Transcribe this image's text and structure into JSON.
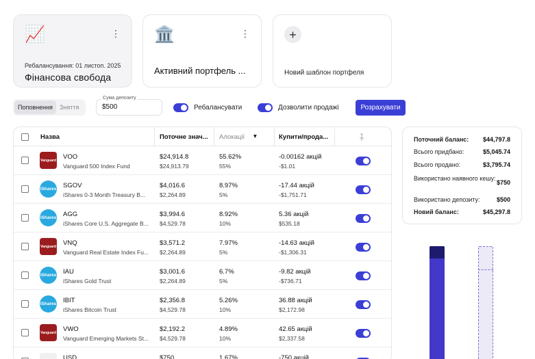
{
  "portfolios": {
    "active_card": {
      "emoji": "📈",
      "menu": "⋮",
      "subtitle": "Ребалансування: 01 листоп. 2025",
      "title": "Фінансова свобода"
    },
    "second_card": {
      "emoji": "🏛️",
      "menu": "⋮",
      "title": "Активний портфель ..."
    },
    "new_card": {
      "plus": "+",
      "label": "Новий шаблон портфеля"
    }
  },
  "controls": {
    "mode_options": [
      "Поповнення",
      "Зняття"
    ],
    "deposit_label": "Сума депозиту",
    "deposit_value": "$500",
    "rebalance_label": "Ребалансувати",
    "allow_sales_label": "Дозволити продажі",
    "calculate_button": "Розрахувати"
  },
  "table": {
    "headers": {
      "name": "Назва",
      "current": "Поточне знач...",
      "allocation": "Алокації",
      "buy_sell": "Купити/прода...",
      "sort_glyph": "▾"
    },
    "rows": [
      {
        "ticker": "VOO",
        "name": "Vanguard 500 Index Fund",
        "logo": "Vanguard",
        "logo_type": "van",
        "current": "$24,914.8",
        "target": "$24,913.79",
        "alloc": "55.62%",
        "alloc_target": "55%",
        "trade": "-0.00162 акцій",
        "trade_value": "-$1.01"
      },
      {
        "ticker": "SGOV",
        "name": "iShares 0-3 Month Treasury B...",
        "logo": "iShares",
        "logo_type": "ish",
        "current": "$4,016.6",
        "target": "$2,264.89",
        "alloc": "8.97%",
        "alloc_target": "5%",
        "trade": "-17.44 акцій",
        "trade_value": "-$1,751.71"
      },
      {
        "ticker": "AGG",
        "name": "iShares Core U.S. Aggregate B...",
        "logo": "iShares",
        "logo_type": "ish",
        "current": "$3,994.6",
        "target": "$4,529.78",
        "alloc": "8.92%",
        "alloc_target": "10%",
        "trade": "5.36 акцій",
        "trade_value": "$535.18"
      },
      {
        "ticker": "VNQ",
        "name": "Vanguard Real Estate Index Fu...",
        "logo": "Vanguard",
        "logo_type": "van",
        "current": "$3,571.2",
        "target": "$2,264.89",
        "alloc": "7.97%",
        "alloc_target": "5%",
        "trade": "-14.63 акцій",
        "trade_value": "-$1,306.31"
      },
      {
        "ticker": "IAU",
        "name": "iShares Gold Trust",
        "logo": "iShares",
        "logo_type": "ish",
        "current": "$3,001.6",
        "target": "$2,264.89",
        "alloc": "6.7%",
        "alloc_target": "5%",
        "trade": "-9.82 акцій",
        "trade_value": "-$736.71"
      },
      {
        "ticker": "IBIT",
        "name": "iShares Bitcoin Trust",
        "logo": "iShares",
        "logo_type": "ish",
        "current": "$2,356.8",
        "target": "$4,529.78",
        "alloc": "5.26%",
        "alloc_target": "10%",
        "trade": "36.88 акцій",
        "trade_value": "$2,172.98"
      },
      {
        "ticker": "VWO",
        "name": "Vanguard Emerging Markets St...",
        "logo": "Vanguard",
        "logo_type": "van",
        "current": "$2,192.2",
        "target": "$4,529.78",
        "alloc": "4.89%",
        "alloc_target": "10%",
        "trade": "42.65 акцій",
        "trade_value": "$2,337.58"
      },
      {
        "ticker": "USD",
        "name": "",
        "logo": "",
        "logo_type": "usd",
        "current": "$750",
        "target": "",
        "alloc": "1.67%",
        "alloc_target": "",
        "trade": "-750 акцій",
        "trade_value": ""
      }
    ]
  },
  "summary": {
    "items": [
      {
        "label": "Поточний баланс:",
        "value": "$44,797.8",
        "bold": true
      },
      {
        "label": "Всього придбано:",
        "value": "$5,045.74",
        "bold": false
      },
      {
        "label": "Всього продано:",
        "value": "$3,795.74",
        "bold": false
      },
      {
        "label": "Використано наявного кешу:",
        "value": "$750",
        "bold": false
      },
      {
        "label": "Використано депозиту:",
        "value": "$500",
        "bold": false
      },
      {
        "label": "Новий баланс:",
        "value": "$45,297.8",
        "bold": true
      }
    ]
  },
  "colors": {
    "accent": "#3b3fd6",
    "vanguard": "#9b1c1f",
    "ishares": "#29a9e0",
    "bar_dark": "#1e1b6e",
    "bar_fill": "#4338ca",
    "bar_target": "#edeaf8"
  }
}
